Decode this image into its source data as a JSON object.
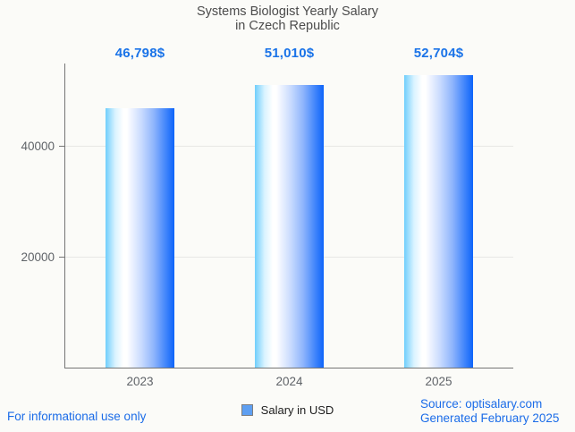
{
  "title": {
    "line1": "Systems Biologist Yearly Salary",
    "line2": "in Czech Republic"
  },
  "chart_data": {
    "type": "bar",
    "title": "Systems Biologist Yearly Salary in Czech Republic",
    "categories": [
      "2023",
      "2024",
      "2025"
    ],
    "values": [
      46798,
      51010,
      52704
    ],
    "value_labels": [
      "46,798$",
      "51,010$",
      "52,704$"
    ],
    "series": [
      {
        "name": "Salary in USD",
        "values": [
          46798,
          51010,
          52704
        ]
      }
    ],
    "xlabel": "",
    "ylabel": "",
    "ylim": [
      0,
      54840
    ],
    "yticks": [
      20000,
      40000
    ],
    "grid": true,
    "legend_position": "bottom"
  },
  "legend": {
    "label": "Salary in USD"
  },
  "footer": {
    "left_note": "For informational use only",
    "source": "Source: optisalary.com",
    "generated": "Generated February 2025"
  },
  "colors": {
    "background": "#fbfbf8",
    "value_label_blue": "#1a73e8",
    "footer_link_blue": "#1b6ce8",
    "title_gray": "#4c4c4c",
    "axis_gray": "#757575",
    "tick_label_gray": "#5f6368",
    "gridline_gray": "#e7e7e5",
    "bar_gradient_left": "#6fcefc",
    "bar_gradient_right": "#0d64fa",
    "legend_swatch": "#5e9ff2"
  }
}
